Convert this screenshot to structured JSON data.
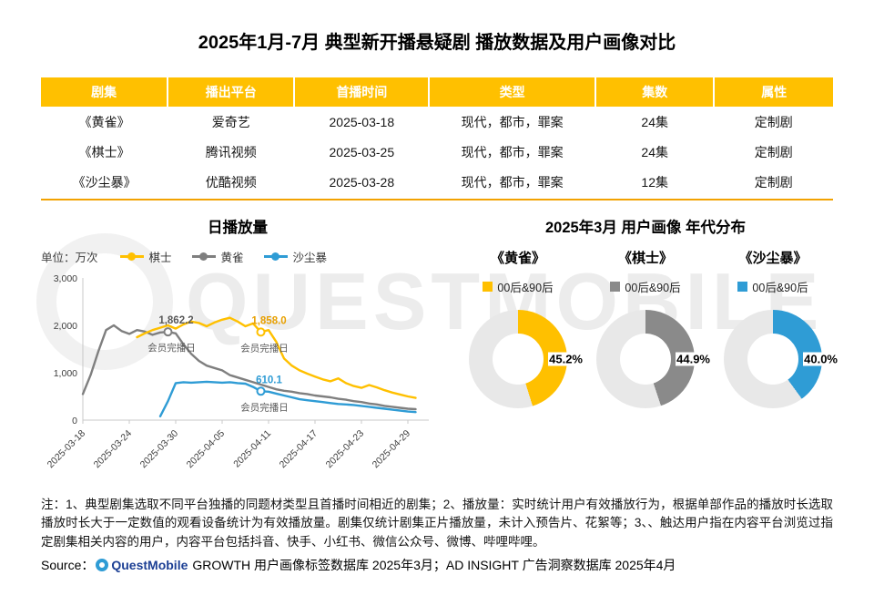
{
  "page": {
    "title": "2025年1月-7月 典型新开播悬疑剧 播放数据及用户画像对比"
  },
  "colors": {
    "table_header_bg": "#FFC000",
    "table_rule": "#F2A202",
    "series_qishi": "#FFC000",
    "series_huangque": "#7F7F7F",
    "series_shachenbao": "#2F9CD5",
    "donut_track": "#E8E8E8"
  },
  "table": {
    "headers": [
      "剧集",
      "播出平台",
      "首播时间",
      "类型",
      "集数",
      "属性"
    ],
    "rows": [
      [
        "《黄雀》",
        "爱奇艺",
        "2025-03-18",
        "现代，都市，罪案",
        "24集",
        "定制剧"
      ],
      [
        "《棋士》",
        "腾讯视频",
        "2025-03-25",
        "现代，都市，罪案",
        "24集",
        "定制剧"
      ],
      [
        "《沙尘暴》",
        "优酷视频",
        "2025-03-28",
        "现代，都市，罪案",
        "12集",
        "定制剧"
      ]
    ]
  },
  "chart_data": [
    {
      "type": "line",
      "title": "日播放量",
      "unit_label": "单位：万次",
      "ylim": [
        0,
        3000
      ],
      "yticks": [
        "0",
        "1,000",
        "2,000",
        "3,000"
      ],
      "tick_days": [
        0,
        6,
        12,
        18,
        24,
        30,
        36,
        42
      ],
      "x_tick_labels": [
        "2025-03-18",
        "2025-03-24",
        "2025-03-30",
        "2025-04-05",
        "2025-04-11",
        "2025-04-17",
        "2025-04-23",
        "2025-04-29"
      ],
      "grid": false,
      "legend_position": "top",
      "series": [
        {
          "name": "棋士",
          "color": "#FFC000",
          "start_day": 7,
          "values": [
            1750,
            1830,
            1900,
            1950,
            2000,
            1930,
            2020,
            2080,
            2050,
            1980,
            2060,
            2120,
            2160,
            2080,
            1980,
            2040,
            1858,
            1900,
            1650,
            1300,
            1150,
            1050,
            980,
            920,
            860,
            820,
            880,
            780,
            720,
            680,
            740,
            690,
            630,
            580,
            540,
            500,
            470
          ]
        },
        {
          "name": "黄雀",
          "color": "#7F7F7F",
          "start_day": 0,
          "values": [
            550,
            950,
            1450,
            1900,
            2000,
            1880,
            1820,
            1900,
            1870,
            1800,
            1850,
            1862,
            1830,
            1600,
            1400,
            1250,
            1150,
            1100,
            1050,
            950,
            900,
            850,
            800,
            750,
            700,
            650,
            620,
            600,
            570,
            550,
            520,
            500,
            480,
            450,
            430,
            400,
            380,
            350,
            330,
            300,
            280,
            260,
            240,
            230
          ]
        },
        {
          "name": "沙尘暴",
          "color": "#2F9CD5",
          "start_day": 10,
          "values": [
            80,
            400,
            780,
            800,
            790,
            800,
            810,
            800,
            790,
            800,
            780,
            770,
            700,
            610,
            600,
            560,
            520,
            480,
            440,
            420,
            400,
            380,
            360,
            340,
            330,
            320,
            300,
            280,
            260,
            240,
            220,
            200,
            180,
            170
          ]
        }
      ],
      "annotations": [
        {
          "series": "黄雀",
          "day": 11,
          "value": 1862,
          "label": "1,862.2",
          "label_color": "#595959",
          "sub": "会员完播日"
        },
        {
          "series": "棋士",
          "day": 23,
          "value": 1858,
          "label": "1,858.0",
          "label_color": "#E8A000",
          "sub": "会员完播日"
        },
        {
          "series": "沙尘暴",
          "day": 23,
          "value": 610,
          "label": "610.1",
          "label_color": "#2F9CD5",
          "sub": "会员完播日"
        }
      ]
    },
    {
      "type": "pie",
      "title": "2025年3月 用户画像 年代分布",
      "track_color": "#E8E8E8",
      "donuts": [
        {
          "title": "《黄雀》",
          "legend": "00后&90后",
          "value": 45.2,
          "label": "45.2%",
          "color": "#FFC000"
        },
        {
          "title": "《棋士》",
          "legend": "00后&90后",
          "value": 44.9,
          "label": "44.9%",
          "color": "#8A8A8A"
        },
        {
          "title": "《沙尘暴》",
          "legend": "00后&90后",
          "value": 40.0,
          "label": "40.0%",
          "color": "#2F9CD5"
        }
      ]
    }
  ],
  "watermark": {
    "text": "QUESTMOBILE"
  },
  "footer": {
    "notes": "注：1、典型剧集选取不同平台独播的同题材类型且首播时间相近的剧集；2、播放量：实时统计用户有效播放行为，根据单部作品的播放时长选取播放时长大于一定数值的观看设备统计为有效播放量。剧集仅统计剧集正片播放量，未计入预告片、花絮等；3、、触达用户指在内容平台浏览过指定剧集相关内容的用户，内容平台包括抖音、快手、小红书、微信公众号、微博、哔哩哔哩。",
    "source_prefix": "Source：",
    "source_brand": "QuestMobile",
    "source_text": "GROWTH 用户画像标签数据库 2025年3月；AD INSIGHT 广告洞察数据库 2025年4月"
  }
}
